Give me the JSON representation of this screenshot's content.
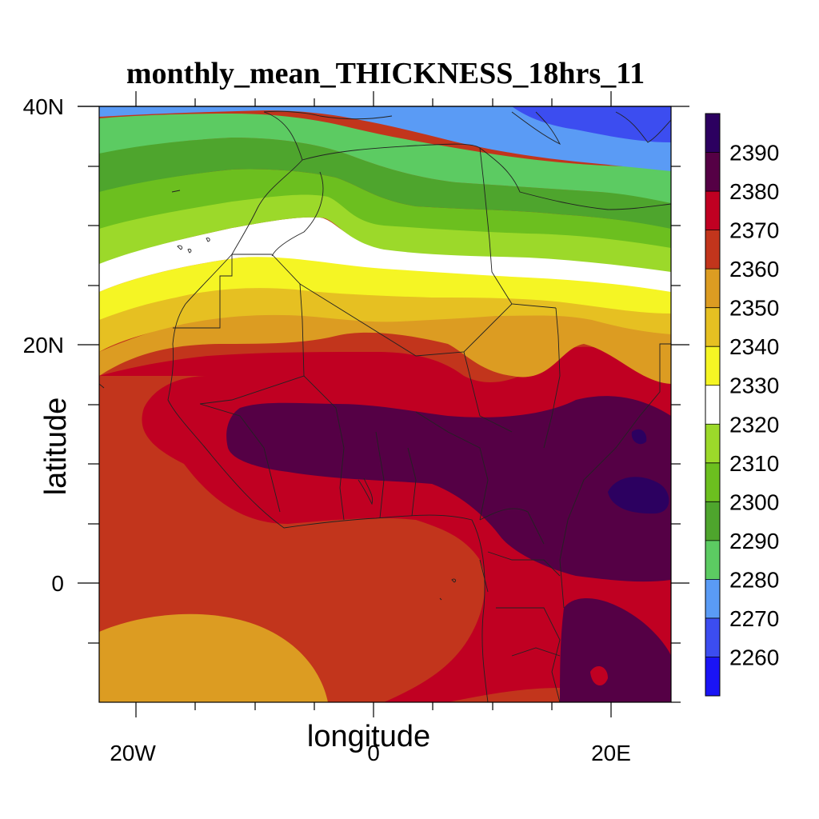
{
  "title": "monthly_mean_THICKNESS_18hrs_11",
  "xaxis": {
    "label": "longitude",
    "ticks": [
      {
        "value": -20,
        "label": "20W"
      },
      {
        "value": 0,
        "label": "0"
      },
      {
        "value": 20,
        "label": "20E"
      }
    ],
    "range": [
      -23,
      25
    ]
  },
  "yaxis": {
    "label": "latitude",
    "ticks": [
      {
        "value": 40,
        "label": "40N"
      },
      {
        "value": 20,
        "label": "20N"
      },
      {
        "value": 0,
        "label": "0"
      }
    ],
    "range": [
      -10,
      40
    ]
  },
  "colorbar": {
    "levels": [
      "2260",
      "2270",
      "2280",
      "2290",
      "2300",
      "2310",
      "2320",
      "2330",
      "2340",
      "2350",
      "2360",
      "2370",
      "2380",
      "2390"
    ],
    "colors": [
      "#1a14f5",
      "#3c4df0",
      "#5a9bf5",
      "#5ccb62",
      "#4ea52d",
      "#6cbf1f",
      "#9cd92a",
      "#ffffff",
      "#f5f524",
      "#e6c022",
      "#dc9c22",
      "#c2351c",
      "#c00022",
      "#550045",
      "#2c0060"
    ]
  },
  "field_colors": {
    "c2270": "#5a9bf5",
    "c2280": "#5ccb62",
    "c2290": "#4ea52d",
    "c2300": "#6cbf1f",
    "c2310": "#9cd92a",
    "c2320": "#ffffff",
    "c2330": "#f5f524",
    "c2340": "#e6c022",
    "c2350": "#dc9c22",
    "c2360": "#c2351c",
    "c2370": "#c00022",
    "c2380": "#550045",
    "c2390": "#2c0060",
    "c2260": "#3c4df0"
  }
}
